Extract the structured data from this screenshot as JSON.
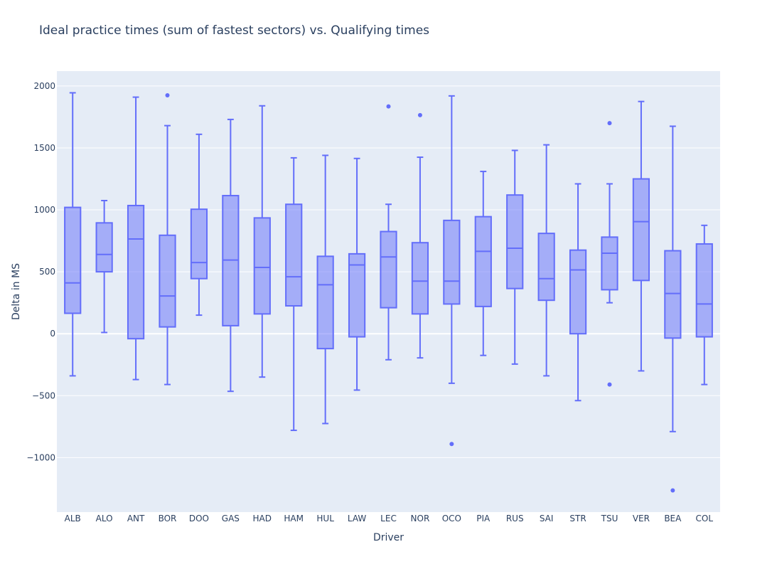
{
  "chart_data": {
    "type": "box",
    "title": "Ideal practice times (sum of fastest sectors) vs. Qualifying times",
    "xlabel": "Driver",
    "ylabel": "Delta in MS",
    "ylim": [
      -1440,
      2120
    ],
    "yticks": [
      -1000,
      -500,
      0,
      500,
      1000,
      1500,
      2000
    ],
    "yticklabels": [
      "−1000",
      "−500",
      "0",
      "500",
      "1000",
      "1500",
      "2000"
    ],
    "grid": true,
    "colors": {
      "line": "#636efa",
      "fill": "#636efa",
      "plot_bg": "#e5ecf6",
      "grid": "#ffffff",
      "text": "#2a3f5f"
    },
    "categories": [
      "ALB",
      "ALO",
      "ANT",
      "BOR",
      "DOO",
      "GAS",
      "HAD",
      "HAM",
      "HUL",
      "LAW",
      "LEC",
      "NOR",
      "OCO",
      "PIA",
      "RUS",
      "SAI",
      "STR",
      "TSU",
      "VER",
      "BEA",
      "COL"
    ],
    "boxes": [
      {
        "category": "ALB",
        "lower_whisker": -340,
        "q1": 165,
        "median": 410,
        "q3": 1020,
        "upper_whisker": 1945,
        "outliers": []
      },
      {
        "category": "ALO",
        "lower_whisker": 10,
        "q1": 500,
        "median": 640,
        "q3": 895,
        "upper_whisker": 1075,
        "outliers": []
      },
      {
        "category": "ANT",
        "lower_whisker": -370,
        "q1": -40,
        "median": 765,
        "q3": 1035,
        "upper_whisker": 1910,
        "outliers": []
      },
      {
        "category": "BOR",
        "lower_whisker": -410,
        "q1": 55,
        "median": 305,
        "q3": 795,
        "upper_whisker": 1680,
        "outliers": [
          1925
        ]
      },
      {
        "category": "DOO",
        "lower_whisker": 150,
        "q1": 445,
        "median": 575,
        "q3": 1005,
        "upper_whisker": 1610,
        "outliers": []
      },
      {
        "category": "GAS",
        "lower_whisker": -465,
        "q1": 65,
        "median": 595,
        "q3": 1115,
        "upper_whisker": 1730,
        "outliers": []
      },
      {
        "category": "HAD",
        "lower_whisker": -350,
        "q1": 160,
        "median": 535,
        "q3": 935,
        "upper_whisker": 1840,
        "outliers": []
      },
      {
        "category": "HAM",
        "lower_whisker": -780,
        "q1": 225,
        "median": 460,
        "q3": 1045,
        "upper_whisker": 1420,
        "outliers": []
      },
      {
        "category": "HUL",
        "lower_whisker": -725,
        "q1": -120,
        "median": 395,
        "q3": 625,
        "upper_whisker": 1440,
        "outliers": []
      },
      {
        "category": "LAW",
        "lower_whisker": -455,
        "q1": -25,
        "median": 555,
        "q3": 645,
        "upper_whisker": 1415,
        "outliers": []
      },
      {
        "category": "LEC",
        "lower_whisker": -210,
        "q1": 210,
        "median": 620,
        "q3": 825,
        "upper_whisker": 1045,
        "outliers": [
          1835
        ]
      },
      {
        "category": "NOR",
        "lower_whisker": -195,
        "q1": 160,
        "median": 425,
        "q3": 735,
        "upper_whisker": 1425,
        "outliers": [
          1765
        ]
      },
      {
        "category": "OCO",
        "lower_whisker": -400,
        "q1": 240,
        "median": 425,
        "q3": 915,
        "upper_whisker": 1920,
        "outliers": [
          -890
        ]
      },
      {
        "category": "PIA",
        "lower_whisker": -175,
        "q1": 220,
        "median": 665,
        "q3": 945,
        "upper_whisker": 1310,
        "outliers": []
      },
      {
        "category": "RUS",
        "lower_whisker": -245,
        "q1": 365,
        "median": 690,
        "q3": 1120,
        "upper_whisker": 1480,
        "outliers": []
      },
      {
        "category": "SAI",
        "lower_whisker": -340,
        "q1": 270,
        "median": 445,
        "q3": 810,
        "upper_whisker": 1525,
        "outliers": []
      },
      {
        "category": "STR",
        "lower_whisker": -540,
        "q1": 0,
        "median": 515,
        "q3": 675,
        "upper_whisker": 1210,
        "outliers": []
      },
      {
        "category": "TSU",
        "lower_whisker": 250,
        "q1": 355,
        "median": 650,
        "q3": 780,
        "upper_whisker": 1210,
        "outliers": [
          1700,
          -410
        ]
      },
      {
        "category": "VER",
        "lower_whisker": -300,
        "q1": 430,
        "median": 905,
        "q3": 1250,
        "upper_whisker": 1875,
        "outliers": []
      },
      {
        "category": "BEA",
        "lower_whisker": -790,
        "q1": -35,
        "median": 325,
        "q3": 670,
        "upper_whisker": 1675,
        "outliers": [
          -1265
        ]
      },
      {
        "category": "COL",
        "lower_whisker": -410,
        "q1": -25,
        "median": 240,
        "q3": 725,
        "upper_whisker": 875,
        "outliers": []
      }
    ]
  }
}
